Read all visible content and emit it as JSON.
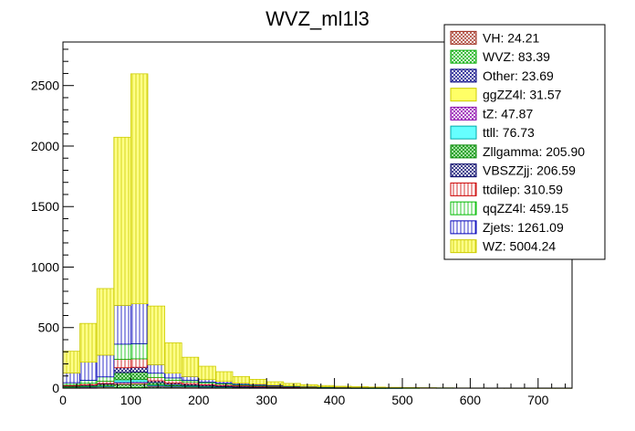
{
  "chart_data": {
    "type": "bar",
    "stacked": true,
    "title": "WVZ_ml1l3",
    "xlabel": "",
    "ylabel": "",
    "xlim": [
      0,
      750
    ],
    "ylim": [
      0,
      2860
    ],
    "bin_width": 25,
    "x_ticks": [
      0,
      100,
      200,
      300,
      400,
      500,
      600,
      700
    ],
    "y_ticks": [
      0,
      500,
      1000,
      1500,
      2000,
      2500
    ],
    "legend_position": "top-right",
    "bin_edges": [
      0,
      25,
      50,
      75,
      100,
      125,
      150,
      175,
      200,
      225,
      250,
      275,
      300,
      325,
      350,
      375,
      400,
      425,
      450,
      475,
      500,
      525,
      550,
      575,
      600,
      625,
      650,
      675,
      700,
      725,
      750
    ],
    "series": [
      {
        "name": "VH",
        "legend_label": "VH: 24.21",
        "color": "#a03020",
        "fill": "#ffffff",
        "pattern": "cross",
        "values": [
          0.5,
          0.8,
          1.5,
          6,
          6,
          2,
          1.2,
          0.9,
          0.6,
          0.4,
          0.3,
          0.2,
          0.1,
          0.05,
          0,
          0,
          0,
          0,
          0,
          0,
          0,
          0,
          0,
          0,
          0,
          0,
          0,
          0,
          0,
          0
        ]
      },
      {
        "name": "WVZ",
        "legend_label": "WVZ: 83.39",
        "color": "#00aa00",
        "fill": "#ffffff",
        "pattern": "cross",
        "values": [
          2,
          3,
          4,
          20,
          22,
          8,
          6,
          5,
          4,
          3,
          2,
          1.5,
          1,
          0.8,
          0.6,
          0.4,
          0.3,
          0.2,
          0.2,
          0.1,
          0.1,
          0,
          0,
          0,
          0,
          0,
          0,
          0,
          0,
          0
        ]
      },
      {
        "name": "Other",
        "legend_label": "Other: 23.69",
        "color": "#000080",
        "fill": "#ffffff",
        "pattern": "cross",
        "values": [
          2,
          2,
          2,
          4,
          4,
          2,
          1.5,
          1.2,
          1,
          0.8,
          0.6,
          0.5,
          0.4,
          0.3,
          0.2,
          0.2,
          0.1,
          0.1,
          0.1,
          0.1,
          0,
          0,
          0,
          0,
          0,
          0,
          0,
          0,
          0,
          0
        ]
      },
      {
        "name": "ggZZ4l",
        "legend_label": "ggZZ4l: 31.57",
        "color": "#cccc00",
        "fill": "#ffff66",
        "pattern": "solid",
        "values": [
          1,
          1.5,
          2,
          8,
          8,
          3,
          2,
          1.5,
          1,
          0.8,
          0.6,
          0.4,
          0.3,
          0.2,
          0.2,
          0.1,
          0.1,
          0,
          0,
          0,
          0,
          0,
          0,
          0,
          0,
          0,
          0,
          0,
          0,
          0
        ]
      },
      {
        "name": "tZ",
        "legend_label": "tZ: 47.87",
        "color": "#8800aa",
        "fill": "#ffffff",
        "pattern": "cross",
        "values": [
          1,
          2,
          3,
          12,
          12,
          5,
          3,
          2.5,
          2,
          1.5,
          1,
          0.8,
          0.6,
          0.4,
          0.3,
          0.2,
          0.1,
          0.1,
          0,
          0,
          0,
          0,
          0,
          0,
          0,
          0,
          0,
          0,
          0,
          0
        ]
      },
      {
        "name": "ttll",
        "legend_label": "ttll: 76.73",
        "color": "#00aaaa",
        "fill": "#66ffff",
        "pattern": "solid",
        "values": [
          2,
          3,
          5,
          18,
          18,
          8,
          6,
          5,
          4,
          3,
          2,
          1.5,
          1,
          0.8,
          0.6,
          0.4,
          0.3,
          0.2,
          0.1,
          0.1,
          0,
          0,
          0,
          0,
          0,
          0,
          0,
          0,
          0,
          0
        ]
      },
      {
        "name": "Zllgamma",
        "legend_label": "Zllgamma: 205.90",
        "color": "#008800",
        "fill": "#bbeebb",
        "pattern": "cross",
        "values": [
          8,
          9,
          14,
          60,
          62,
          18,
          10,
          6,
          4,
          3,
          2,
          1.5,
          1,
          0.8,
          0.5,
          0.3,
          0.2,
          0.1,
          0.1,
          0,
          0,
          0,
          0,
          0,
          0,
          0,
          0,
          0,
          0,
          0
        ]
      },
      {
        "name": "VBSZZjj",
        "legend_label": "VBSZZjj: 206.59",
        "color": "#000066",
        "fill": "#ffffff",
        "pattern": "cross",
        "values": [
          3,
          4,
          6,
          40,
          40,
          14,
          12,
          11,
          10,
          9,
          8,
          7,
          6,
          5,
          4.5,
          4,
          3.5,
          3,
          2.5,
          2,
          1.5,
          1.2,
          1,
          0.8,
          0.6,
          0.4,
          0.3,
          0.2,
          0.1,
          0.1
        ]
      },
      {
        "name": "ttdilep",
        "legend_label": "ttdilep: 310.59",
        "color": "#cc0000",
        "fill": "#ffffff",
        "pattern": "vlines",
        "values": [
          10,
          14,
          20,
          70,
          70,
          28,
          22,
          18,
          14,
          11,
          8,
          6,
          4,
          3,
          2,
          1.5,
          1,
          0.8,
          0.5,
          0.3,
          0.2,
          0.1,
          0,
          0,
          0,
          0,
          0,
          0,
          0,
          0
        ]
      },
      {
        "name": "qqZZ4l",
        "legend_label": "qqZZ4l: 459.15",
        "color": "#00bb00",
        "fill": "#ffffff",
        "pattern": "vlines",
        "values": [
          15,
          25,
          35,
          125,
          125,
          35,
          20,
          14,
          10,
          8,
          6,
          5,
          4,
          3,
          2.5,
          2,
          1.5,
          1,
          0.8,
          0.5,
          0.3,
          0.2,
          0.1,
          0,
          0,
          0,
          0,
          0,
          0,
          0
        ]
      },
      {
        "name": "Zjets",
        "legend_label": "Zjets: 1261.09",
        "color": "#0000bb",
        "fill": "#ffffff",
        "pattern": "vlines",
        "values": [
          80,
          150,
          180,
          320,
          330,
          70,
          40,
          30,
          20,
          15,
          10,
          8,
          6,
          4,
          3,
          2,
          1,
          1,
          0.5,
          0.5,
          0,
          0,
          0,
          0,
          0,
          0,
          0,
          0,
          0,
          0
        ]
      },
      {
        "name": "WZ",
        "legend_label": "WZ: 5004.24",
        "color": "#cccc00",
        "fill": "#ffff88",
        "pattern": "vlines",
        "values": [
          180,
          320,
          550,
          1390,
          1900,
          485,
          250,
          160,
          110,
          80,
          55,
          40,
          28,
          20,
          14,
          10,
          7,
          5,
          3.5,
          2.5,
          1.7,
          1.2,
          0.8,
          0.5,
          0.4,
          0.3,
          0.2,
          0.1,
          0.1,
          0.05
        ]
      }
    ]
  }
}
